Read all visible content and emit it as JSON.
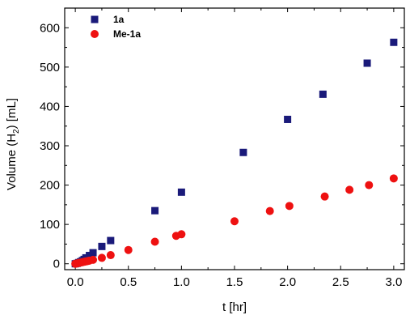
{
  "chart_data": {
    "type": "scatter",
    "xlabel": "t [hr]",
    "ylabel_main": "Volume (H",
    "ylabel_sub": "2",
    "ylabel_tail": ") [mL]",
    "xlim": [
      -0.1,
      3.1
    ],
    "ylim": [
      -15,
      650
    ],
    "xticks": [
      0.0,
      0.5,
      1.0,
      1.5,
      2.0,
      2.5,
      3.0
    ],
    "xtick_labels": [
      "0.0",
      "0.5",
      "1.0",
      "1.5",
      "2.0",
      "2.5",
      "3.0"
    ],
    "yticks": [
      0,
      100,
      200,
      300,
      400,
      500,
      600
    ],
    "ytick_labels": [
      "0",
      "100",
      "200",
      "300",
      "400",
      "500",
      "600"
    ],
    "legend_position": "top-left",
    "grid": false,
    "series": [
      {
        "name": "1a",
        "marker": "square",
        "color": "#1a1a7a",
        "x": [
          0.0,
          0.017,
          0.033,
          0.05,
          0.067,
          0.083,
          0.1,
          0.133,
          0.167,
          0.25,
          0.333,
          0.75,
          1.0,
          1.583,
          2.0,
          2.333,
          2.75,
          3.0
        ],
        "y": [
          0,
          1,
          3,
          5,
          8,
          11,
          15,
          21,
          28,
          44,
          59,
          135,
          182,
          283,
          367,
          431,
          510,
          563
        ]
      },
      {
        "name": "Me-1a",
        "marker": "circle",
        "color": "#ee1111",
        "x": [
          0.0,
          0.017,
          0.033,
          0.05,
          0.067,
          0.083,
          0.1,
          0.117,
          0.133,
          0.167,
          0.25,
          0.333,
          0.5,
          0.75,
          0.95,
          1.0,
          1.5,
          1.833,
          2.017,
          2.35,
          2.583,
          2.767,
          3.0
        ],
        "y": [
          0,
          1,
          2,
          3,
          4,
          5,
          6,
          7,
          8,
          10,
          15,
          22,
          35,
          56,
          71,
          75,
          108,
          134,
          147,
          171,
          188,
          200,
          217
        ]
      }
    ]
  }
}
